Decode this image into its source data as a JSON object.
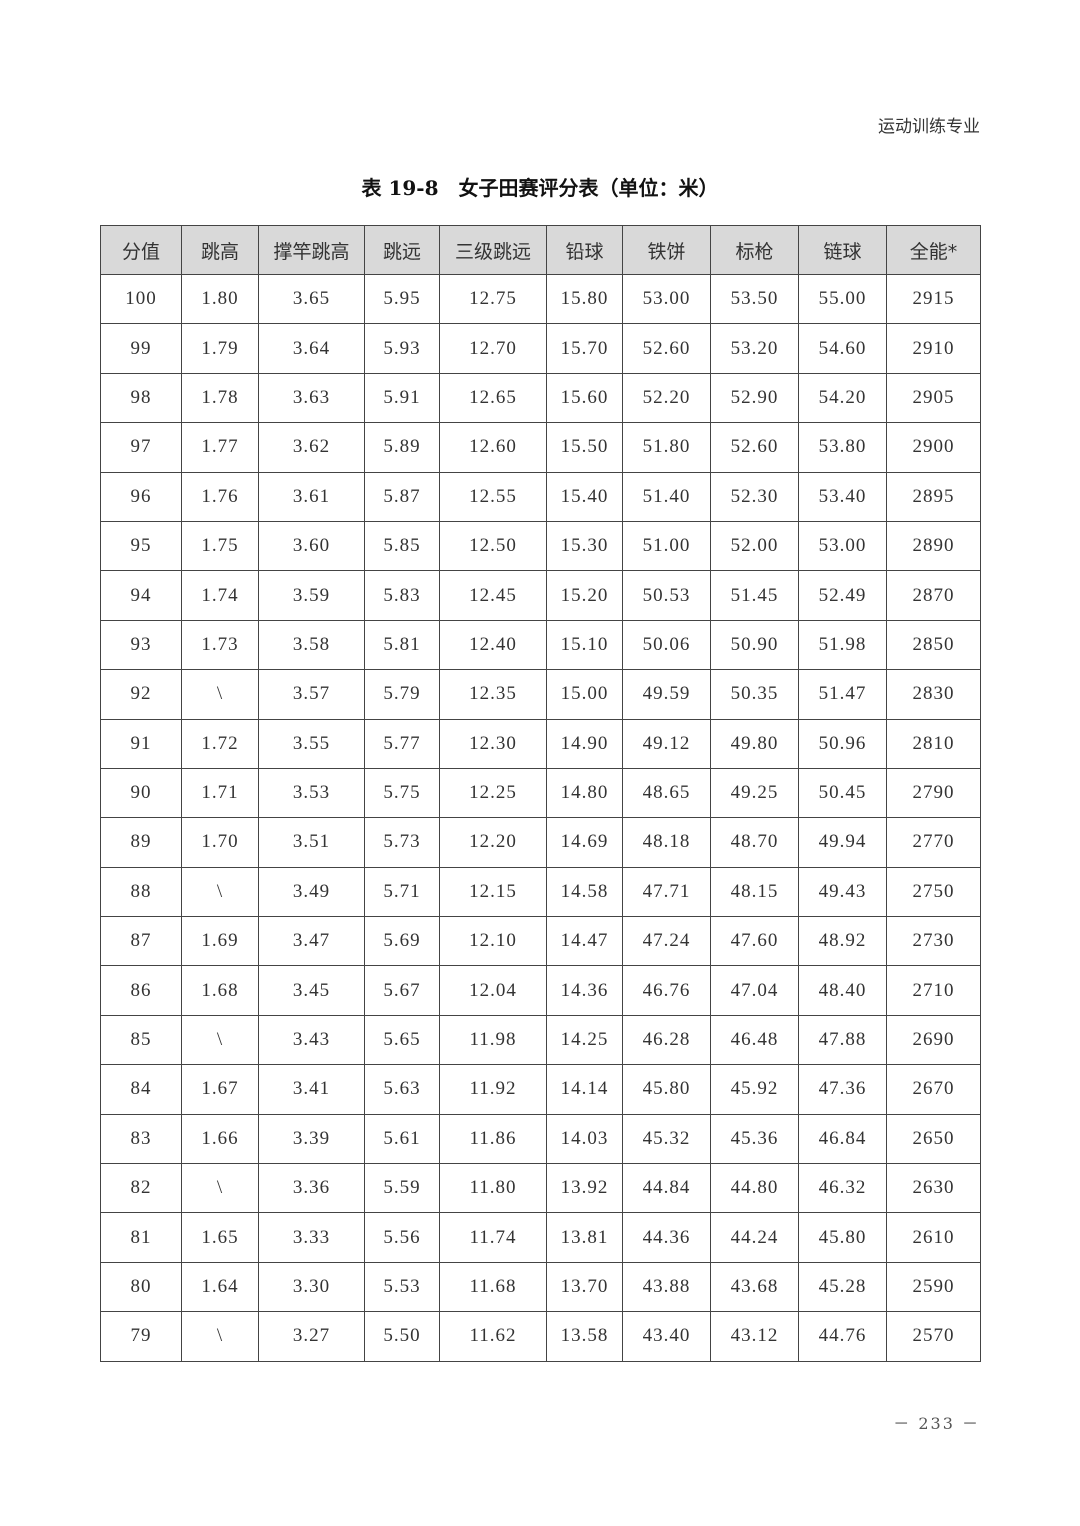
{
  "running_head": "运动训练专业",
  "title": "表 19-8　女子田赛评分表（单位：米）",
  "page_number": "－ 233 －",
  "table": {
    "headers": [
      "分值",
      "跳高",
      "撑竿跳高",
      "跳远",
      "三级跳远",
      "铅球",
      "铁饼",
      "标枪",
      "链球",
      "全能*"
    ],
    "rows": [
      [
        "100",
        "1.80",
        "3.65",
        "5.95",
        "12.75",
        "15.80",
        "53.00",
        "53.50",
        "55.00",
        "2915"
      ],
      [
        "99",
        "1.79",
        "3.64",
        "5.93",
        "12.70",
        "15.70",
        "52.60",
        "53.20",
        "54.60",
        "2910"
      ],
      [
        "98",
        "1.78",
        "3.63",
        "5.91",
        "12.65",
        "15.60",
        "52.20",
        "52.90",
        "54.20",
        "2905"
      ],
      [
        "97",
        "1.77",
        "3.62",
        "5.89",
        "12.60",
        "15.50",
        "51.80",
        "52.60",
        "53.80",
        "2900"
      ],
      [
        "96",
        "1.76",
        "3.61",
        "5.87",
        "12.55",
        "15.40",
        "51.40",
        "52.30",
        "53.40",
        "2895"
      ],
      [
        "95",
        "1.75",
        "3.60",
        "5.85",
        "12.50",
        "15.30",
        "51.00",
        "52.00",
        "53.00",
        "2890"
      ],
      [
        "94",
        "1.74",
        "3.59",
        "5.83",
        "12.45",
        "15.20",
        "50.53",
        "51.45",
        "52.49",
        "2870"
      ],
      [
        "93",
        "1.73",
        "3.58",
        "5.81",
        "12.40",
        "15.10",
        "50.06",
        "50.90",
        "51.98",
        "2850"
      ],
      [
        "92",
        "\\",
        "3.57",
        "5.79",
        "12.35",
        "15.00",
        "49.59",
        "50.35",
        "51.47",
        "2830"
      ],
      [
        "91",
        "1.72",
        "3.55",
        "5.77",
        "12.30",
        "14.90",
        "49.12",
        "49.80",
        "50.96",
        "2810"
      ],
      [
        "90",
        "1.71",
        "3.53",
        "5.75",
        "12.25",
        "14.80",
        "48.65",
        "49.25",
        "50.45",
        "2790"
      ],
      [
        "89",
        "1.70",
        "3.51",
        "5.73",
        "12.20",
        "14.69",
        "48.18",
        "48.70",
        "49.94",
        "2770"
      ],
      [
        "88",
        "\\",
        "3.49",
        "5.71",
        "12.15",
        "14.58",
        "47.71",
        "48.15",
        "49.43",
        "2750"
      ],
      [
        "87",
        "1.69",
        "3.47",
        "5.69",
        "12.10",
        "14.47",
        "47.24",
        "47.60",
        "48.92",
        "2730"
      ],
      [
        "86",
        "1.68",
        "3.45",
        "5.67",
        "12.04",
        "14.36",
        "46.76",
        "47.04",
        "48.40",
        "2710"
      ],
      [
        "85",
        "\\",
        "3.43",
        "5.65",
        "11.98",
        "14.25",
        "46.28",
        "46.48",
        "47.88",
        "2690"
      ],
      [
        "84",
        "1.67",
        "3.41",
        "5.63",
        "11.92",
        "14.14",
        "45.80",
        "45.92",
        "47.36",
        "2670"
      ],
      [
        "83",
        "1.66",
        "3.39",
        "5.61",
        "11.86",
        "14.03",
        "45.32",
        "45.36",
        "46.84",
        "2650"
      ],
      [
        "82",
        "\\",
        "3.36",
        "5.59",
        "11.80",
        "13.92",
        "44.84",
        "44.80",
        "46.32",
        "2630"
      ],
      [
        "81",
        "1.65",
        "3.33",
        "5.56",
        "11.74",
        "13.81",
        "44.36",
        "44.24",
        "45.80",
        "2610"
      ],
      [
        "80",
        "1.64",
        "3.30",
        "5.53",
        "11.68",
        "13.70",
        "43.88",
        "43.68",
        "45.28",
        "2590"
      ],
      [
        "79",
        "\\",
        "3.27",
        "5.50",
        "11.62",
        "13.58",
        "43.40",
        "43.12",
        "44.76",
        "2570"
      ]
    ]
  }
}
